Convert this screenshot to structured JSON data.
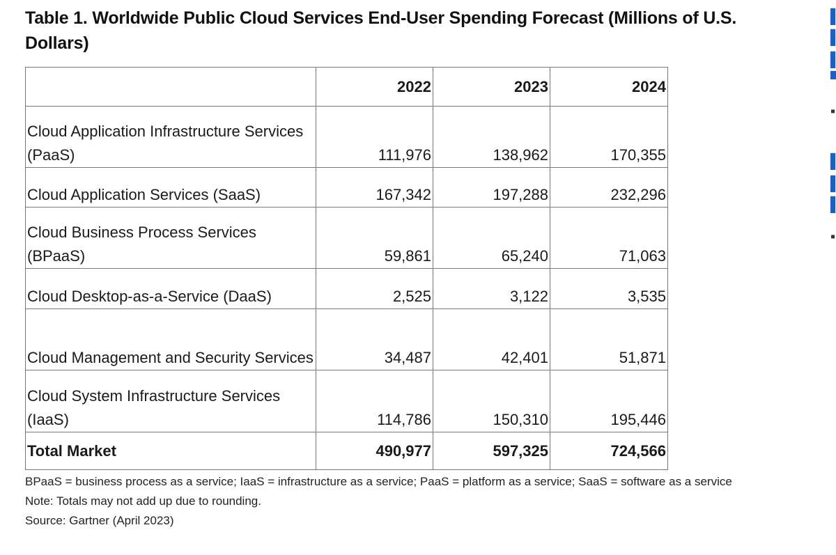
{
  "title": "Table 1. Worldwide Public Cloud Services End-User Spending Forecast (Millions of U.S. Dollars)",
  "table": {
    "years": [
      "2022",
      "2023",
      "2024"
    ],
    "rows": [
      {
        "label": "Cloud Application Infrastructure Services (PaaS)",
        "values": [
          "111,976",
          "138,962",
          "170,355"
        ]
      },
      {
        "label": "Cloud Application Services (SaaS)",
        "values": [
          "167,342",
          "197,288",
          "232,296"
        ]
      },
      {
        "label": "Cloud Business Process Services (BPaaS)",
        "values": [
          "59,861",
          "65,240",
          "71,063"
        ]
      },
      {
        "label": "Cloud Desktop-as-a-Service (DaaS)",
        "values": [
          "2,525",
          "3,122",
          "3,535"
        ]
      },
      {
        "label": "Cloud Management and Security Services",
        "values": [
          "34,487",
          "42,401",
          "51,871"
        ]
      },
      {
        "label": "Cloud System Infrastructure Services (IaaS)",
        "values": [
          "114,786",
          "150,310",
          "195,446"
        ]
      }
    ],
    "total": {
      "label": "Total Market",
      "values": [
        "490,977",
        "597,325",
        "724,566"
      ]
    }
  },
  "notes": {
    "abbreviations": "BPaaS = business process as a service; IaaS = infrastructure as a service; PaaS = platform as a service; SaaS = software as a service",
    "note": "Note: Totals may not add up due to rounding.",
    "source": "Source: Gartner (April 2023)"
  },
  "colors": {
    "link_blue": "#1e5fc4",
    "border": "#777777",
    "text": "#111111"
  }
}
